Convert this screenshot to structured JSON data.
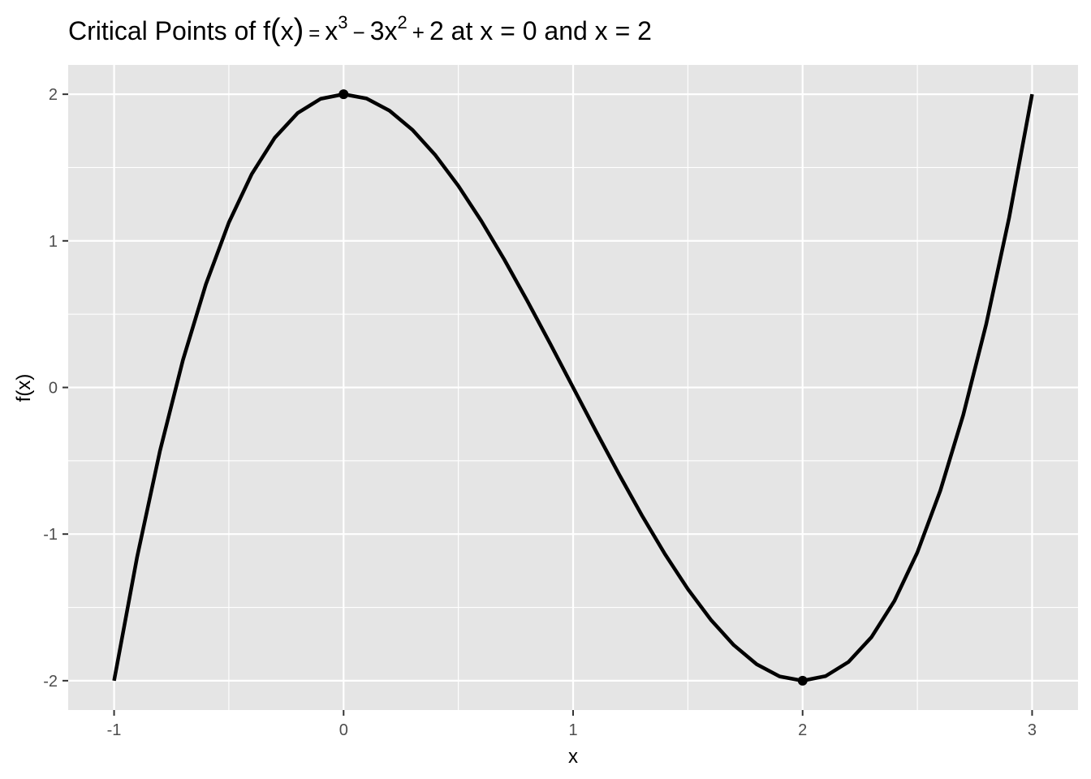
{
  "chart_data": {
    "type": "line",
    "title": {
      "lead": "Critical Points of f",
      "open_paren": "(",
      "arg": "x",
      "close_paren": ")",
      "eq1": "=",
      "x1": "x",
      "exp1": "3",
      "minus": "−",
      "coef": "3x",
      "exp2": "2",
      "plus": "+",
      "rest": "2 at x = 0 and x = 2"
    },
    "xlabel": "x",
    "ylabel": "f(x)",
    "xlim": [
      -1.2,
      3.2
    ],
    "ylim": [
      -2.2,
      2.2
    ],
    "x_ticks": [
      -1,
      0,
      1,
      2,
      3
    ],
    "x_tick_labels": [
      "-1",
      "0",
      "1",
      "2",
      "3"
    ],
    "y_ticks": [
      -2,
      -1,
      0,
      1,
      2
    ],
    "y_tick_labels": [
      "-2",
      "-1",
      "0",
      "1",
      "2"
    ],
    "x_minor": [
      -0.5,
      0.5,
      1.5,
      2.5
    ],
    "y_minor": [
      -1.5,
      -0.5,
      0.5,
      1.5
    ],
    "grid": true,
    "panel_color": "#e5e5e5",
    "grid_color": "#ffffff",
    "line_color": "#000000",
    "series": [
      {
        "x": [
          -1,
          -0.9,
          -0.8,
          -0.7,
          -0.6,
          -0.5,
          -0.4,
          -0.3,
          -0.2,
          -0.1,
          0,
          0.1,
          0.2,
          0.3,
          0.4,
          0.5,
          0.6,
          0.7,
          0.8,
          0.9,
          1,
          1.1,
          1.2,
          1.3,
          1.4,
          1.5,
          1.6,
          1.7,
          1.8,
          1.9,
          2,
          2.1,
          2.2,
          2.3,
          2.4,
          2.5,
          2.6,
          2.7,
          2.8,
          2.9,
          3
        ],
        "y": [
          -2,
          -1.159,
          -0.432,
          0.187,
          0.704,
          1.125,
          1.456,
          1.703,
          1.872,
          1.969,
          2,
          1.971,
          1.888,
          1.757,
          1.584,
          1.375,
          1.136,
          0.873,
          0.592,
          0.299,
          0,
          -0.299,
          -0.592,
          -0.873,
          -1.136,
          -1.375,
          -1.584,
          -1.757,
          -1.888,
          -1.971,
          -2,
          -1.969,
          -1.872,
          -1.703,
          -1.456,
          -1.125,
          -0.704,
          -0.187,
          0.432,
          1.159,
          2
        ]
      }
    ],
    "critical_points": [
      {
        "x": 0,
        "y": 2
      },
      {
        "x": 2,
        "y": -2
      }
    ]
  }
}
